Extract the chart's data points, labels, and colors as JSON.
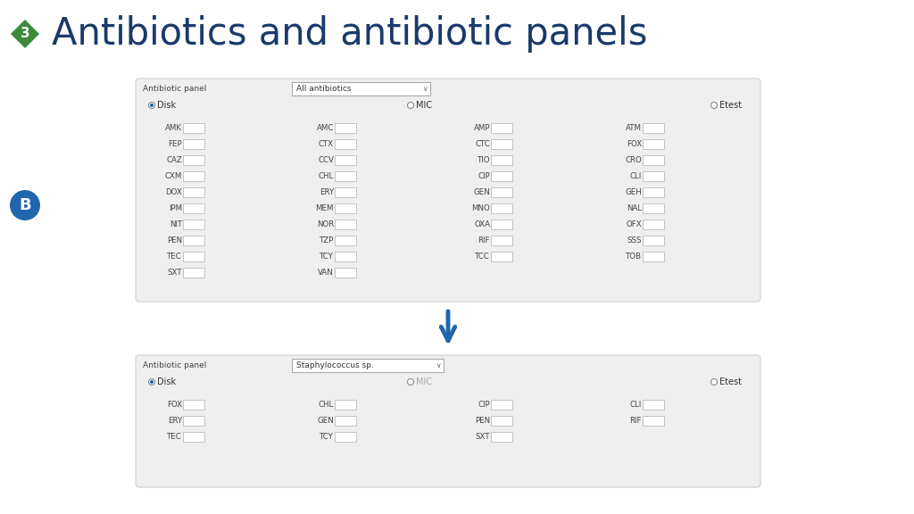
{
  "title": "Antibiotics and antibiotic panels",
  "title_color": "#1a3a6b",
  "title_fontsize": 30,
  "badge_number": "3",
  "badge_color": "#3a8a3a",
  "b_badge_color": "#2166ac",
  "panel_bg": "#efefef",
  "panel_border": "#d0d0d0",
  "panel1_label": "Antibiotic panel",
  "panel1_dropdown": "All antibiotics",
  "panel2_label": "Antibiotic panel",
  "panel2_dropdown": "Staphylococcus sp.",
  "radio_disk": "Disk",
  "radio_mic": "MIC",
  "radio_etest": "Etest",
  "antibiotic_text_color": "#444444",
  "panel1_col1": [
    "AMK",
    "FEP",
    "CAZ",
    "CXM",
    "DOX",
    "IPM",
    "NIT",
    "PEN",
    "TEC",
    "SXT"
  ],
  "panel1_col2": [
    "AMC",
    "CTX",
    "CCV",
    "CHL",
    "ERY",
    "MEM",
    "NOR",
    "TZP",
    "TCY",
    "VAN"
  ],
  "panel1_col3": [
    "AMP",
    "CTC",
    "TIO",
    "CIP",
    "GEN",
    "MNO",
    "OXA",
    "RIF",
    "TCC",
    ""
  ],
  "panel1_col4": [
    "ATM",
    "FOX",
    "CRO",
    "CLI",
    "GEH",
    "NAL",
    "OFX",
    "SSS",
    "TOB",
    ""
  ],
  "panel2_col1": [
    "FOX",
    "ERY",
    "TEC"
  ],
  "panel2_col2": [
    "CHL",
    "GEN",
    "TCY"
  ],
  "panel2_col3": [
    "CIP",
    "PEN",
    "SXT"
  ],
  "panel2_col4": [
    "CLI",
    "RIF",
    ""
  ],
  "arrow_color": "#2166ac",
  "fig_w": 10.24,
  "fig_h": 5.76,
  "dpi": 100
}
